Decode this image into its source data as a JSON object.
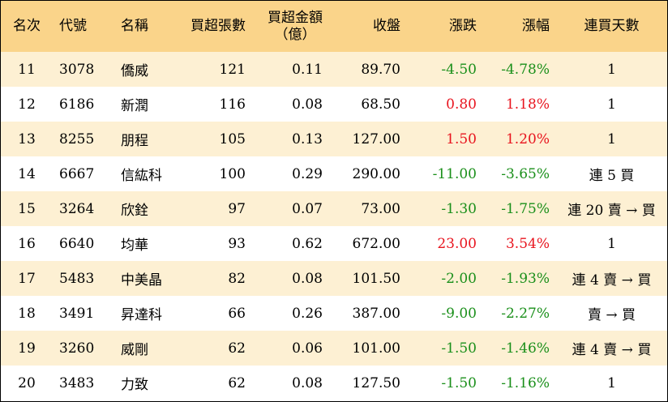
{
  "headers": {
    "rank": "名次",
    "code": "代號",
    "name": "名稱",
    "net_buy_lots": "買超張數",
    "net_buy_amount_line1": "買超金額",
    "net_buy_amount_line2": "（億）",
    "close": "收盤",
    "change": "漲跌",
    "change_pct": "漲幅",
    "consecutive_days": "連買天數"
  },
  "colors": {
    "header_bg": "#fad48a",
    "odd_row_bg": "#fdf0d3",
    "negative": "#1a8f1a",
    "positive": "#e8141e"
  },
  "rows": [
    {
      "rank": "11",
      "code": "3078",
      "name": "僑威",
      "lots": "121",
      "amount": "0.11",
      "close": "89.70",
      "change": "-4.50",
      "pct": "-4.78%",
      "days": "1",
      "trend": "green"
    },
    {
      "rank": "12",
      "code": "6186",
      "name": "新潤",
      "lots": "116",
      "amount": "0.08",
      "close": "68.50",
      "change": "0.80",
      "pct": "1.18%",
      "days": "1",
      "trend": "red"
    },
    {
      "rank": "13",
      "code": "8255",
      "name": "朋程",
      "lots": "105",
      "amount": "0.13",
      "close": "127.00",
      "change": "1.50",
      "pct": "1.20%",
      "days": "1",
      "trend": "red"
    },
    {
      "rank": "14",
      "code": "6667",
      "name": "信紘科",
      "lots": "100",
      "amount": "0.29",
      "close": "290.00",
      "change": "-11.00",
      "pct": "-3.65%",
      "days": "連 5 買",
      "trend": "green"
    },
    {
      "rank": "15",
      "code": "3264",
      "name": "欣銓",
      "lots": "97",
      "amount": "0.07",
      "close": "73.00",
      "change": "-1.30",
      "pct": "-1.75%",
      "days": "連 20 賣 → 買",
      "trend": "green"
    },
    {
      "rank": "16",
      "code": "6640",
      "name": "均華",
      "lots": "93",
      "amount": "0.62",
      "close": "672.00",
      "change": "23.00",
      "pct": "3.54%",
      "days": "1",
      "trend": "red"
    },
    {
      "rank": "17",
      "code": "5483",
      "name": "中美晶",
      "lots": "82",
      "amount": "0.08",
      "close": "101.50",
      "change": "-2.00",
      "pct": "-1.93%",
      "days": "連 4 賣 → 買",
      "trend": "green"
    },
    {
      "rank": "18",
      "code": "3491",
      "name": "昇達科",
      "lots": "66",
      "amount": "0.26",
      "close": "387.00",
      "change": "-9.00",
      "pct": "-2.27%",
      "days": "賣 → 買",
      "trend": "green"
    },
    {
      "rank": "19",
      "code": "3260",
      "name": "威剛",
      "lots": "62",
      "amount": "0.06",
      "close": "101.00",
      "change": "-1.50",
      "pct": "-1.46%",
      "days": "連 4 賣 → 買",
      "trend": "green"
    },
    {
      "rank": "20",
      "code": "3483",
      "name": "力致",
      "lots": "62",
      "amount": "0.08",
      "close": "127.50",
      "change": "-1.50",
      "pct": "-1.16%",
      "days": "1",
      "trend": "green"
    }
  ]
}
